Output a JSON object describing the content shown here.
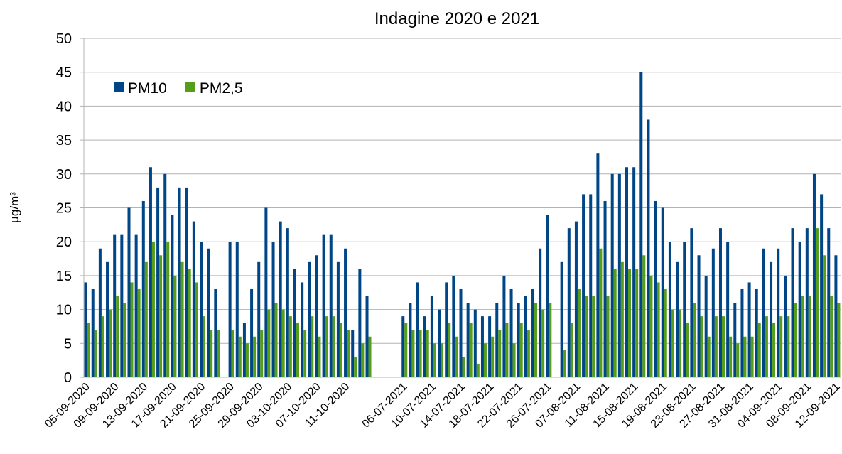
{
  "chart_data": {
    "type": "bar",
    "title": "Indagine 2020 e 2021",
    "y_label": "µg/m³",
    "categories": [
      "05-09-2020",
      null,
      null,
      null,
      "09-09-2020",
      null,
      null,
      null,
      "13-09-2020",
      null,
      null,
      null,
      "17-09-2020",
      null,
      null,
      null,
      "21-09-2020",
      null,
      null,
      null,
      "25-09-2020",
      null,
      null,
      null,
      "29-09-2020",
      null,
      null,
      null,
      "03-10-2020",
      null,
      null,
      null,
      "07-10-2020",
      null,
      null,
      null,
      "11-10-2020",
      null,
      null,
      null,
      null,
      null,
      null,
      null,
      "06-07-2021",
      null,
      null,
      null,
      "10-07-2021",
      null,
      null,
      null,
      "14-07-2021",
      null,
      null,
      null,
      "18-07-2021",
      null,
      null,
      null,
      "22-07-2021",
      null,
      null,
      null,
      "26-07-2021",
      null,
      null,
      null,
      "07-08-2021",
      null,
      null,
      null,
      "11-08-2021",
      null,
      null,
      null,
      "15-08-2021",
      null,
      null,
      null,
      "19-08-2021",
      null,
      null,
      null,
      "23-08-2021",
      null,
      null,
      null,
      "27-08-2021",
      null,
      null,
      null,
      "31-08-2021",
      null,
      null,
      null,
      "04-09-2021",
      null,
      null,
      null,
      "08-09-2021",
      null,
      null,
      null,
      "12-09-2021"
    ],
    "series": [
      {
        "name": "PM10",
        "color": "#004586",
        "values": [
          14,
          13,
          19,
          17,
          21,
          21,
          25,
          21,
          26,
          31,
          28,
          30,
          24,
          28,
          28,
          23,
          20,
          19,
          13,
          null,
          20,
          20,
          8,
          13,
          17,
          25,
          20,
          23,
          22,
          16,
          14,
          17,
          18,
          21,
          21,
          17,
          19,
          7,
          16,
          12,
          null,
          null,
          null,
          null,
          9,
          11,
          14,
          9,
          12,
          10,
          14,
          15,
          13,
          11,
          10,
          9,
          9,
          11,
          15,
          13,
          11,
          12,
          13,
          19,
          24,
          null,
          17,
          22,
          23,
          27,
          27,
          33,
          26,
          30,
          30,
          31,
          31,
          45,
          38,
          26,
          25,
          20,
          17,
          20,
          22,
          18,
          15,
          19,
          22,
          20,
          11,
          13,
          14,
          13,
          19,
          17,
          19,
          15,
          22,
          20,
          22,
          30,
          27,
          22,
          18
        ]
      },
      {
        "name": "PM2,5",
        "color": "#579d1c",
        "values": [
          8,
          7,
          9,
          10,
          12,
          11,
          14,
          13,
          17,
          20,
          18,
          20,
          15,
          17,
          16,
          14,
          9,
          7,
          7,
          null,
          7,
          6,
          5,
          6,
          7,
          10,
          11,
          10,
          9,
          8,
          7,
          9,
          6,
          9,
          9,
          8,
          7,
          3,
          5,
          6,
          null,
          null,
          null,
          null,
          8,
          7,
          7,
          7,
          5,
          5,
          8,
          6,
          3,
          8,
          2,
          5,
          6,
          7,
          8,
          5,
          8,
          7,
          11,
          10,
          11,
          null,
          4,
          8,
          13,
          12,
          12,
          19,
          12,
          16,
          17,
          16,
          16,
          18,
          15,
          14,
          13,
          10,
          10,
          8,
          11,
          9,
          6,
          9,
          9,
          6,
          5,
          6,
          6,
          8,
          9,
          8,
          9,
          9,
          11,
          12,
          12,
          22,
          18,
          12,
          11
        ]
      }
    ],
    "ylim": [
      0,
      50
    ],
    "yticks": [
      0,
      5,
      10,
      15,
      20,
      25,
      30,
      35,
      40,
      45,
      50
    ],
    "grid": true,
    "legend": "top-left"
  }
}
